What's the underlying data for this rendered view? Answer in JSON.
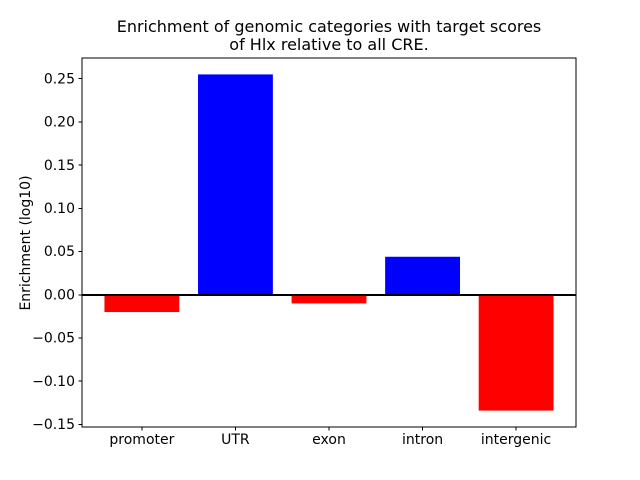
{
  "figure": {
    "background": "#ffffff",
    "title_line1": "Enrichment of genomic categories with target scores",
    "title_line2": "of Hlx relative to all CRE.",
    "ylabel": "Enrichment (log10)"
  },
  "chart_data": {
    "type": "bar",
    "title": "Enrichment of genomic categories with target scores\nof Hlx relative to all CRE.",
    "xlabel": "",
    "ylabel": "Enrichment (log10)",
    "categories": [
      "promoter",
      "UTR",
      "exon",
      "intron",
      "intergenic"
    ],
    "values": [
      -0.02,
      0.255,
      -0.01,
      0.044,
      -0.134
    ],
    "bar_colors": [
      "#ff0000",
      "#0000ff",
      "#ff0000",
      "#0000ff",
      "#ff0000"
    ],
    "positive_color": "#0000ff",
    "negative_color": "#ff0000",
    "bar_width": 0.8,
    "xlim": [
      -0.64,
      4.64
    ],
    "ylim": [
      -0.153,
      0.274
    ],
    "yticks": [
      -0.15,
      -0.1,
      -0.05,
      0.0,
      0.05,
      0.1,
      0.15,
      0.2,
      0.25
    ],
    "ytick_labels": [
      "−0.15",
      "−0.10",
      "−0.05",
      "0.00",
      "0.05",
      "0.10",
      "0.15",
      "0.20",
      "0.25"
    ],
    "grid": false,
    "legend": null,
    "zero_line": true,
    "spine_color": "#000000",
    "tick_length": 3.5
  }
}
